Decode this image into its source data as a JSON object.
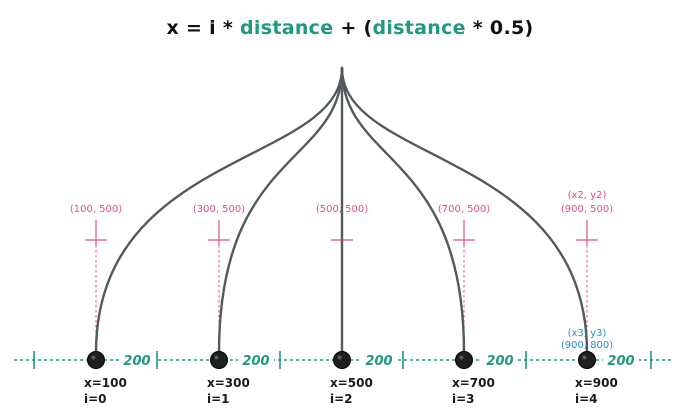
{
  "formula": {
    "p1": "x = i * ",
    "p2": "distance",
    "p3": " + (",
    "p4": "distance",
    "p5": " * 0.5)"
  },
  "colors": {
    "axis": "#1e9a7f",
    "target": "#e0507a",
    "special": "#2a8bd0",
    "curve": "#535a5c",
    "node": "#1d1f20",
    "text": "#1a1a1a"
  },
  "spacing_label": "200",
  "nodes": [
    {
      "x_label": "x=100",
      "i_label": "i=0"
    },
    {
      "x_label": "x=300",
      "i_label": "i=1"
    },
    {
      "x_label": "x=500",
      "i_label": "i=2"
    },
    {
      "x_label": "x=700",
      "i_label": "i=3"
    },
    {
      "x_label": "x=900",
      "i_label": "i=4"
    }
  ],
  "targets": [
    {
      "label": "(100, 500)"
    },
    {
      "label": "(300, 500)"
    },
    {
      "label": "(500, 500)"
    },
    {
      "label": "(700, 500)"
    },
    {
      "label": "(900, 500)",
      "extra_label": "(x2, y2)"
    }
  ],
  "endpoint": {
    "label1": "(x3, y3)",
    "label2": "(900, 800)"
  }
}
